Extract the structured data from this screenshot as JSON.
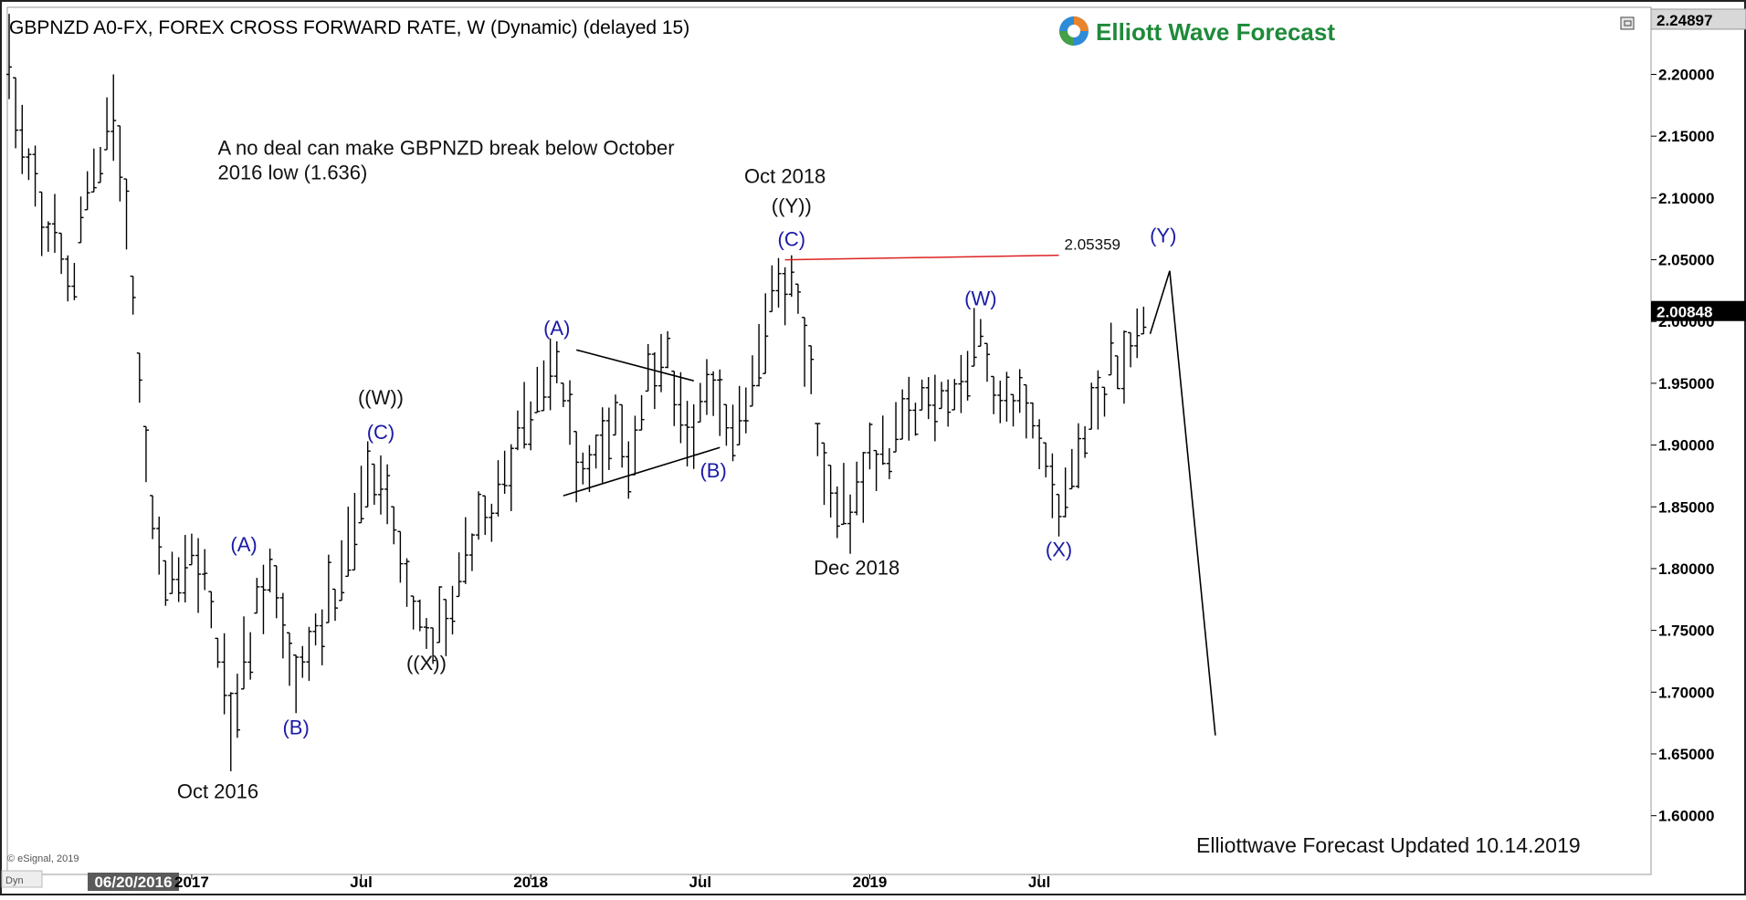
{
  "window": {
    "title": "GBPNZD A0-FX, FOREX CROSS FORWARD RATE, W (Dynamic) (delayed 15)",
    "logo_text": "Elliott Wave Forecast",
    "copyright": "© eSignal, 2019",
    "corner_label": "Dyn",
    "footer": "Elliottwave Forecast Updated 10.14.2019"
  },
  "chart_data": {
    "type": "bar",
    "title": "GBPNZD A0-FX, FOREX CROSS FORWARD RATE, W (Dynamic) (delayed 15)",
    "ylim": [
      1.55,
      2.25
    ],
    "y_ticks": [
      "2.20000",
      "2.15000",
      "2.10000",
      "2.05000",
      "2.00000",
      "1.95000",
      "1.90000",
      "1.85000",
      "1.80000",
      "1.75000",
      "1.70000",
      "1.65000",
      "1.60000"
    ],
    "y_tick_values": [
      2.2,
      2.15,
      2.1,
      2.05,
      2.0,
      1.95,
      1.9,
      1.85,
      1.8,
      1.75,
      1.7,
      1.65,
      1.6
    ],
    "x_ticks": [
      {
        "label": "06/20/2016",
        "week": 0,
        "highlight": true
      },
      {
        "label": "2017",
        "week": 28
      },
      {
        "label": "Jul",
        "week": 54
      },
      {
        "label": "2018",
        "week": 80
      },
      {
        "label": "Jul",
        "week": 106
      },
      {
        "label": "2019",
        "week": 132
      },
      {
        "label": "Jul",
        "week": 158
      }
    ],
    "price_markers": [
      {
        "label": "2.24897",
        "value": 2.24897,
        "style": "top"
      },
      {
        "label": "2.00848",
        "value": 2.00848,
        "style": "last"
      }
    ],
    "anchors": [
      {
        "week": 0,
        "value": 2.2
      },
      {
        "week": 5,
        "value": 2.09
      },
      {
        "week": 10,
        "value": 2.04
      },
      {
        "week": 16,
        "value": 2.19
      },
      {
        "week": 19,
        "value": 2.02
      },
      {
        "week": 21,
        "value": 1.89
      },
      {
        "week": 24,
        "value": 1.78
      },
      {
        "week": 27,
        "value": 1.81
      },
      {
        "week": 30,
        "value": 1.8
      },
      {
        "week": 34,
        "value": 1.67
      },
      {
        "week": 38,
        "value": 1.77
      },
      {
        "week": 41,
        "value": 1.79
      },
      {
        "week": 44,
        "value": 1.71
      },
      {
        "week": 48,
        "value": 1.76
      },
      {
        "week": 52,
        "value": 1.81
      },
      {
        "week": 56,
        "value": 1.88
      },
      {
        "week": 59,
        "value": 1.84
      },
      {
        "week": 62,
        "value": 1.78
      },
      {
        "week": 64,
        "value": 1.74
      },
      {
        "week": 67,
        "value": 1.76
      },
      {
        "week": 71,
        "value": 1.82
      },
      {
        "week": 75,
        "value": 1.86
      },
      {
        "week": 78,
        "value": 1.9
      },
      {
        "week": 82,
        "value": 1.95
      },
      {
        "week": 84,
        "value": 1.97
      },
      {
        "week": 87,
        "value": 1.9
      },
      {
        "week": 89,
        "value": 1.88
      },
      {
        "week": 92,
        "value": 1.92
      },
      {
        "week": 95,
        "value": 1.89
      },
      {
        "week": 98,
        "value": 1.95
      },
      {
        "week": 101,
        "value": 1.96
      },
      {
        "week": 104,
        "value": 1.91
      },
      {
        "week": 107,
        "value": 1.94
      },
      {
        "week": 109,
        "value": 1.93
      },
      {
        "week": 112,
        "value": 1.92
      },
      {
        "week": 114,
        "value": 1.96
      },
      {
        "week": 117,
        "value": 2.02
      },
      {
        "week": 120,
        "value": 2.04
      },
      {
        "week": 122,
        "value": 1.98
      },
      {
        "week": 125,
        "value": 1.88
      },
      {
        "week": 127,
        "value": 1.84
      },
      {
        "week": 129,
        "value": 1.85
      },
      {
        "week": 132,
        "value": 1.89
      },
      {
        "week": 135,
        "value": 1.9
      },
      {
        "week": 138,
        "value": 1.92
      },
      {
        "week": 141,
        "value": 1.94
      },
      {
        "week": 144,
        "value": 1.94
      },
      {
        "week": 147,
        "value": 1.96
      },
      {
        "week": 149,
        "value": 1.99
      },
      {
        "week": 152,
        "value": 1.94
      },
      {
        "week": 155,
        "value": 1.93
      },
      {
        "week": 158,
        "value": 1.89
      },
      {
        "week": 161,
        "value": 1.85
      },
      {
        "week": 163,
        "value": 1.87
      },
      {
        "week": 166,
        "value": 1.92
      },
      {
        "week": 169,
        "value": 1.96
      },
      {
        "week": 171,
        "value": 1.98
      },
      {
        "week": 174,
        "value": 2.0
      }
    ],
    "extremes": [
      {
        "week": 0,
        "high": 2.249,
        "low": 2.18
      },
      {
        "week": 16,
        "high": 2.2,
        "low": 2.13
      },
      {
        "week": 21,
        "high": 1.915,
        "low": 1.87
      },
      {
        "week": 34,
        "high": 1.7,
        "low": 1.636
      },
      {
        "week": 44,
        "high": 1.73,
        "low": 1.683
      },
      {
        "week": 64,
        "high": 1.76,
        "low": 1.735
      },
      {
        "week": 84,
        "high": 1.984,
        "low": 1.95
      },
      {
        "week": 89,
        "high": 1.9,
        "low": 1.862
      },
      {
        "week": 120,
        "high": 2.0536,
        "low": 2.02
      },
      {
        "week": 129,
        "high": 1.86,
        "low": 1.812
      },
      {
        "week": 149,
        "high": 2.002,
        "low": 1.98
      },
      {
        "week": 161,
        "high": 1.86,
        "low": 1.826
      },
      {
        "week": 174,
        "high": 2.012,
        "low": 1.99
      }
    ],
    "lines": [
      {
        "name": "triangle-upper",
        "color": "#000000",
        "points": [
          [
            87,
            1.977
          ],
          [
            105,
            1.952
          ]
        ]
      },
      {
        "name": "triangle-lower",
        "color": "#000000",
        "points": [
          [
            85,
            1.859
          ],
          [
            109,
            1.898
          ]
        ]
      },
      {
        "name": "resistance-line",
        "color": "#dd2222",
        "points": [
          [
            119,
            2.0499
          ],
          [
            161,
            2.0536
          ]
        ],
        "label": "2.05359"
      },
      {
        "name": "projection-path",
        "color": "#000000",
        "points": [
          [
            175,
            1.99
          ],
          [
            178,
            2.041
          ],
          [
            185,
            1.665
          ]
        ]
      }
    ],
    "wave_labels": [
      {
        "text": "(A)",
        "week": 36,
        "value": 1.814,
        "color": "blue"
      },
      {
        "text": "(B)",
        "week": 44,
        "value": 1.666,
        "color": "blue"
      },
      {
        "text": "((W))",
        "week": 57,
        "value": 1.933,
        "color": "black"
      },
      {
        "text": "(C)",
        "week": 57,
        "value": 1.905,
        "color": "blue"
      },
      {
        "text": "((X))",
        "week": 64,
        "value": 1.718,
        "color": "black"
      },
      {
        "text": "(A)",
        "week": 84,
        "value": 1.989,
        "color": "blue"
      },
      {
        "text": "(B)",
        "week": 108,
        "value": 1.874,
        "color": "blue"
      },
      {
        "text": "((Y))",
        "week": 120,
        "value": 2.088,
        "color": "black"
      },
      {
        "text": "(C)",
        "week": 120,
        "value": 2.061,
        "color": "blue"
      },
      {
        "text": "(W)",
        "week": 149,
        "value": 2.013,
        "color": "blue"
      },
      {
        "text": "(X)",
        "week": 161,
        "value": 1.81,
        "color": "blue"
      },
      {
        "text": "(Y)",
        "week": 177,
        "value": 2.064,
        "color": "blue"
      }
    ],
    "annotations": [
      {
        "text": "Oct 2016",
        "week": 32,
        "value": 1.614,
        "anchor": "middle"
      },
      {
        "text": "Oct 2018",
        "week": 119,
        "value": 2.112,
        "anchor": "middle"
      },
      {
        "text": "Dec 2018",
        "week": 130,
        "value": 1.795,
        "anchor": "middle"
      },
      {
        "text": "A no deal can make GBPNZD break below October",
        "week": 32,
        "value": 2.135,
        "anchor": "start"
      },
      {
        "text": "2016 low (1.636)",
        "week": 32,
        "value": 2.115,
        "anchor": "start"
      }
    ]
  }
}
